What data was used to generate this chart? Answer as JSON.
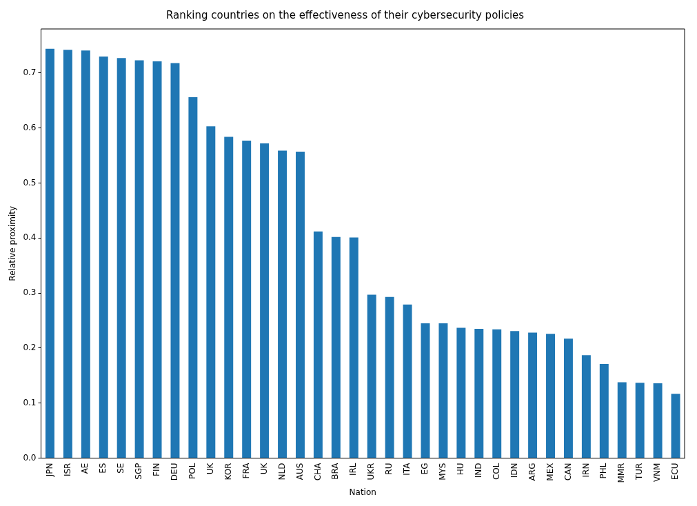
{
  "chart_data": {
    "type": "bar",
    "title": "Ranking countries on the effectiveness of their cybersecurity policies",
    "xlabel": "Nation",
    "ylabel": "Relative proximity",
    "categories": [
      "JPN",
      "ISR",
      "AE",
      "ES",
      "SE",
      "SGP",
      "FIN",
      "DEU",
      "POL",
      "UK",
      "KOR",
      "FRA",
      "UK",
      "NLD",
      "AUS",
      "CHA",
      "BRA",
      "IRL",
      "UKR",
      "RU",
      "ITA",
      "EG",
      "MYS",
      "HU",
      "IND",
      "COL",
      "IDN",
      "ARG",
      "MEX",
      "CAN",
      "IRN",
      "PHL",
      "MMR",
      "TUR",
      "VNM",
      "ECU"
    ],
    "values": [
      0.744,
      0.742,
      0.741,
      0.73,
      0.727,
      0.723,
      0.721,
      0.718,
      0.656,
      0.603,
      0.584,
      0.577,
      0.572,
      0.559,
      0.557,
      0.412,
      0.402,
      0.401,
      0.297,
      0.293,
      0.279,
      0.245,
      0.245,
      0.237,
      0.235,
      0.234,
      0.231,
      0.228,
      0.226,
      0.217,
      0.187,
      0.171,
      0.138,
      0.137,
      0.136,
      0.117
    ],
    "color": "#1f77b4",
    "ylim": [
      0,
      0.78
    ],
    "yticks": [
      {
        "value": 0,
        "label": "0.0"
      },
      {
        "value": 0.1,
        "label": "0.1"
      },
      {
        "value": 0.2,
        "label": "0.2"
      },
      {
        "value": 0.3,
        "label": "0.3"
      },
      {
        "value": 0.4,
        "label": "0.4"
      },
      {
        "value": 0.5,
        "label": "0.5"
      },
      {
        "value": 0.6,
        "label": "0.6"
      },
      {
        "value": 0.7,
        "label": "0.7"
      }
    ],
    "grid": false,
    "legend": false
  }
}
